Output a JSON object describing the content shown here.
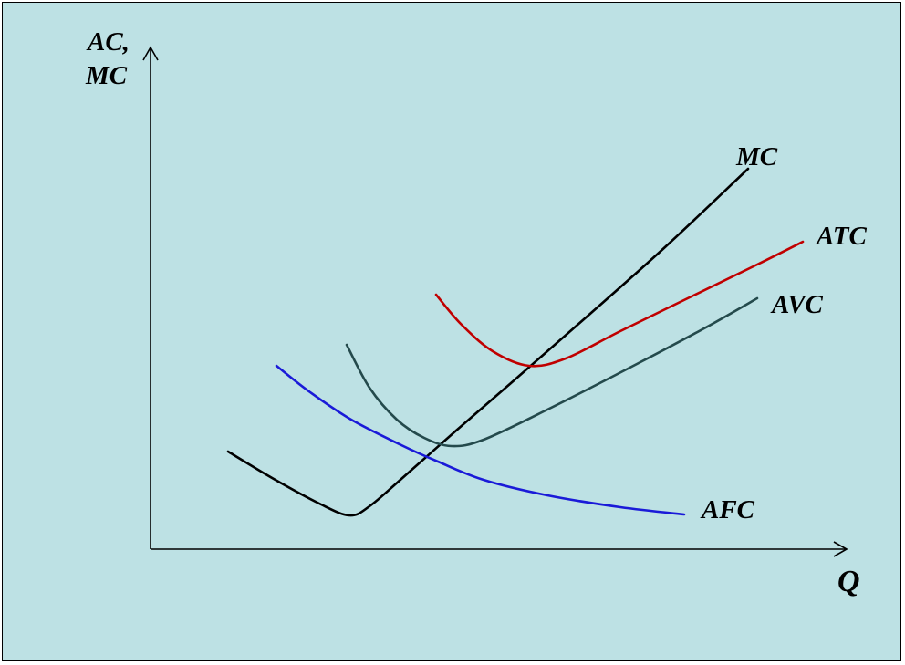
{
  "chart_data": {
    "type": "line",
    "title": "",
    "ylabel_line1": "AC,",
    "ylabel_line2": "MC",
    "xlabel": "Q",
    "grid": false,
    "colors": {
      "background": "#bde1e4",
      "MC": "#000000",
      "ATC": "#c00000",
      "AVC": "#244a4c",
      "AFC": "#1a1ad8"
    },
    "series": [
      {
        "name": "MC",
        "points": [
          [
            250,
            495
          ],
          [
            300,
            525
          ],
          [
            350,
            552
          ],
          [
            383,
            565
          ],
          [
            405,
            555
          ],
          [
            440,
            525
          ],
          [
            500,
            472
          ],
          [
            560,
            420
          ],
          [
            640,
            350
          ],
          [
            730,
            270
          ],
          [
            820,
            185
          ]
        ]
      },
      {
        "name": "ATC",
        "points": [
          [
            478,
            323
          ],
          [
            505,
            355
          ],
          [
            540,
            385
          ],
          [
            580,
            401
          ],
          [
            620,
            393
          ],
          [
            680,
            363
          ],
          [
            760,
            324
          ],
          [
            830,
            290
          ],
          [
            880,
            265
          ]
        ]
      },
      {
        "name": "AVC",
        "points": [
          [
            380,
            378
          ],
          [
            405,
            425
          ],
          [
            435,
            460
          ],
          [
            465,
            480
          ],
          [
            495,
            489
          ],
          [
            530,
            482
          ],
          [
            600,
            449
          ],
          [
            700,
            398
          ],
          [
            770,
            361
          ],
          [
            830,
            327
          ]
        ]
      },
      {
        "name": "AFC",
        "points": [
          [
            303,
            401
          ],
          [
            340,
            430
          ],
          [
            385,
            460
          ],
          [
            440,
            488
          ],
          [
            480,
            506
          ],
          [
            530,
            526
          ],
          [
            600,
            543
          ],
          [
            680,
            556
          ],
          [
            750,
            564
          ]
        ]
      }
    ]
  }
}
